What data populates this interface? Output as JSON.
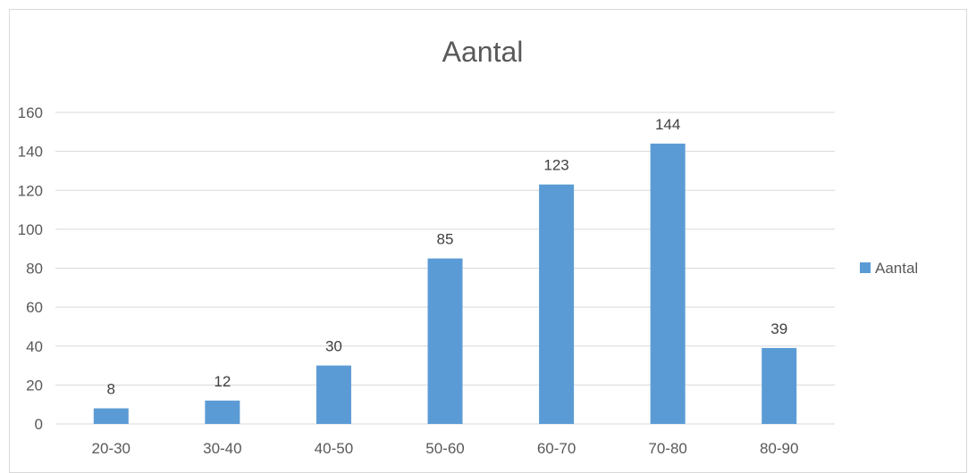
{
  "chart_data": {
    "type": "bar",
    "title": "Aantal",
    "categories": [
      "20-30",
      "30-40",
      "40-50",
      "50-60",
      "60-70",
      "70-80",
      "80-90"
    ],
    "series": [
      {
        "name": "Aantal",
        "values": [
          8,
          12,
          30,
          85,
          123,
          144,
          39
        ],
        "color": "#5b9bd5"
      }
    ],
    "ylim": [
      0,
      160
    ],
    "yticks": [
      0,
      20,
      40,
      60,
      80,
      100,
      120,
      140,
      160
    ],
    "xlabel": "",
    "ylabel": "",
    "grid": true,
    "legend_position": "right",
    "data_labels": true,
    "gridline_color": "#d9d9d9",
    "text_color": "#595959"
  }
}
